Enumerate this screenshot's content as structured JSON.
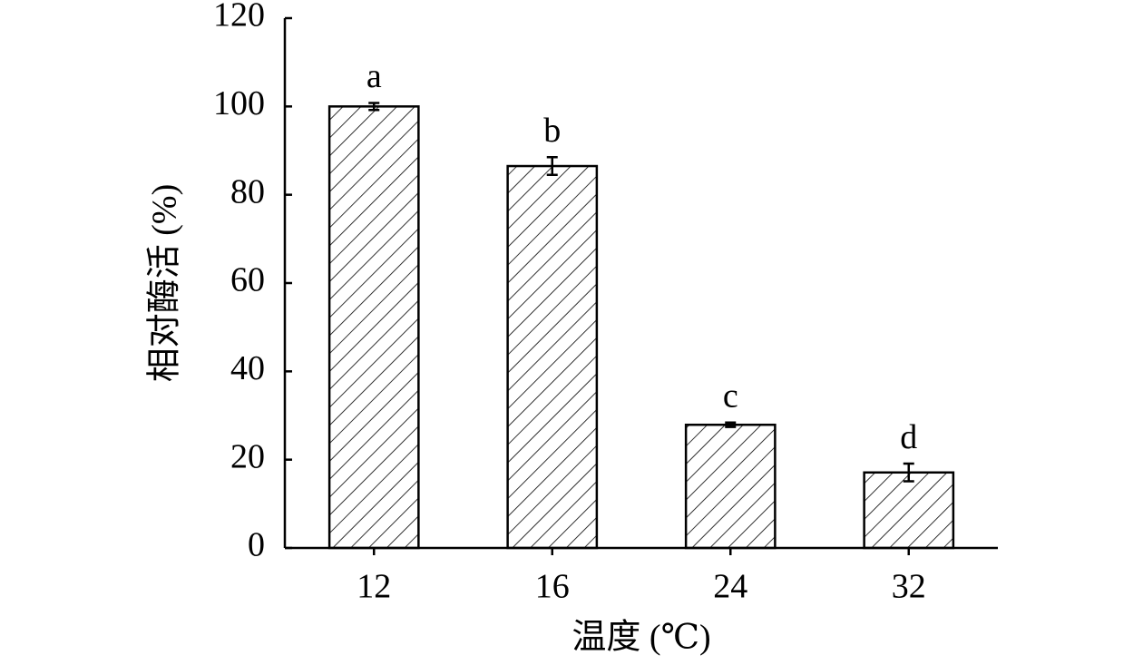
{
  "chart_data": {
    "type": "bar",
    "categories": [
      "12",
      "16",
      "24",
      "32"
    ],
    "values": [
      100,
      86.5,
      27.9,
      17.1
    ],
    "errors": [
      0.8,
      2,
      0.5,
      2
    ],
    "labels": [
      "a",
      "b",
      "c",
      "d"
    ],
    "color": "#000000",
    "hatch": true,
    "xlabel": "温度 (℃)",
    "ylabel": "相对酶活 (%)",
    "ylim": [
      0,
      120
    ],
    "yticks": [
      0,
      20,
      40,
      60,
      80,
      100,
      120
    ],
    "grid": false
  }
}
